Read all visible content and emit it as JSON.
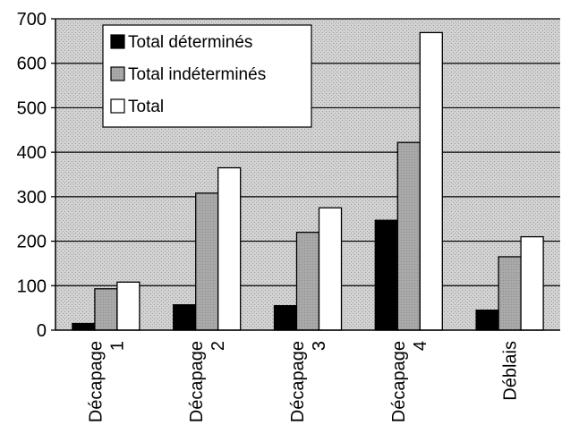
{
  "chart_data": {
    "type": "bar",
    "categories": [
      [
        "Décapage",
        "1"
      ],
      [
        "Décapage",
        "2"
      ],
      [
        "Décapage",
        "3"
      ],
      [
        "Décapage",
        "4"
      ],
      [
        "Déblais"
      ]
    ],
    "series": [
      {
        "name": "Total déterminés",
        "values": [
          15,
          57,
          55,
          247,
          45
        ],
        "color": "#000000"
      },
      {
        "name": "Total indéterminés",
        "values": [
          93,
          308,
          220,
          422,
          165
        ],
        "color": "#a8a8a8"
      },
      {
        "name": "Total",
        "values": [
          108,
          365,
          275,
          669,
          210
        ],
        "color": "#ffffff"
      }
    ],
    "ylim": [
      0,
      700
    ],
    "yticks": [
      0,
      100,
      200,
      300,
      400,
      500,
      600,
      700
    ],
    "grid": true,
    "legend_position": "top-left",
    "plot_background": "#cfcfcf"
  }
}
